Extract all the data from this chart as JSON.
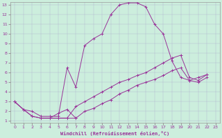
{
  "xlabel": "Windchill (Refroidissement éolien,°C)",
  "bg_color": "#cceedd",
  "line_color": "#993399",
  "ylim": [
    1,
    13
  ],
  "xlim": [
    0,
    23
  ],
  "yticks": [
    1,
    2,
    3,
    4,
    5,
    6,
    7,
    8,
    9,
    10,
    11,
    12,
    13
  ],
  "xticks": [
    0,
    1,
    2,
    3,
    4,
    5,
    6,
    7,
    8,
    9,
    10,
    11,
    12,
    13,
    14,
    15,
    16,
    17,
    18,
    19,
    20,
    21,
    22,
    23
  ],
  "line1_x": [
    0,
    1,
    2,
    3,
    4,
    5,
    6,
    7,
    8,
    9,
    10,
    11,
    12,
    13,
    14,
    15,
    16,
    17,
    18,
    19,
    20,
    21,
    22
  ],
  "line1_y": [
    3.0,
    2.2,
    2.0,
    1.5,
    1.5,
    1.5,
    6.5,
    4.5,
    8.8,
    9.5,
    10.0,
    12.0,
    13.0,
    13.2,
    13.2,
    12.8,
    11.0,
    10.0,
    7.2,
    5.5,
    5.2,
    5.5,
    5.8
  ],
  "line2_x": [
    0,
    1,
    2,
    3,
    4,
    5,
    6,
    7,
    8,
    9,
    10,
    11,
    12,
    13,
    14,
    15,
    16,
    17,
    18,
    19,
    20,
    21,
    22
  ],
  "line2_y": [
    3.0,
    2.2,
    1.5,
    1.3,
    1.3,
    1.3,
    1.3,
    1.3,
    2.0,
    2.3,
    2.8,
    3.2,
    3.8,
    4.2,
    4.7,
    5.0,
    5.3,
    5.7,
    6.2,
    6.5,
    5.2,
    5.0,
    5.5
  ],
  "line3_x": [
    0,
    1,
    2,
    3,
    4,
    5,
    6,
    7,
    8,
    9,
    10,
    11,
    12,
    13,
    14,
    15,
    16,
    17,
    18,
    19,
    20,
    21,
    22
  ],
  "line3_y": [
    3.0,
    2.2,
    1.5,
    1.3,
    1.3,
    1.3,
    1.3,
    2.5,
    3.0,
    3.5,
    4.0,
    4.5,
    5.0,
    5.3,
    5.7,
    6.0,
    6.5,
    7.0,
    7.5,
    7.8,
    5.5,
    5.2,
    5.8
  ],
  "line4_x": [
    3,
    4,
    5,
    6,
    7
  ],
  "line4_y": [
    1.3,
    1.3,
    1.8,
    2.2,
    1.3
  ]
}
